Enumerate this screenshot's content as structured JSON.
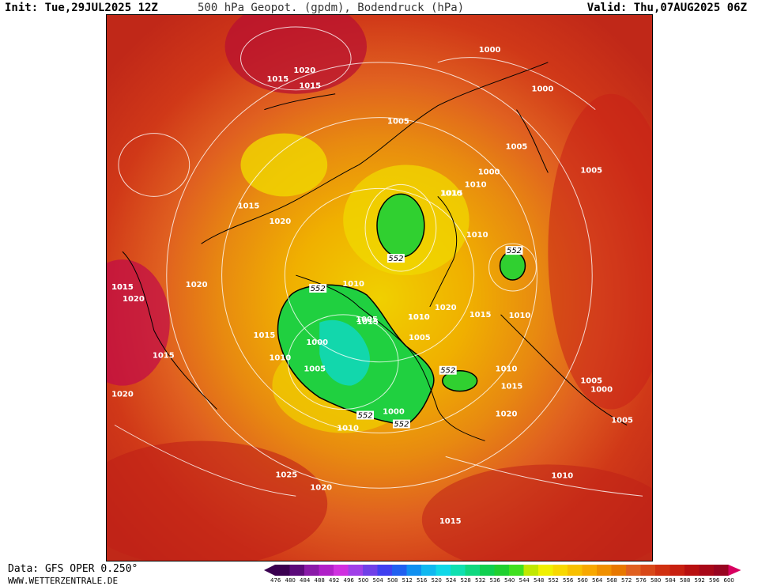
{
  "header": {
    "init": "Init: Tue,29JUL2025 12Z",
    "title": "500 hPa Geopot. (gpdm), Bodendruck (hPa)",
    "valid": "Valid: Thu,07AUG2025 06Z"
  },
  "footer": {
    "data_source": "Data: GFS OPER 0.250°",
    "site": "WWW.WETTERZENTRALE.DE"
  },
  "legend": {
    "values": [
      "476",
      "480",
      "484",
      "488",
      "492",
      "496",
      "500",
      "504",
      "508",
      "512",
      "516",
      "520",
      "524",
      "528",
      "532",
      "536",
      "540",
      "544",
      "548",
      "552",
      "556",
      "560",
      "564",
      "568",
      "572",
      "576",
      "580",
      "584",
      "588",
      "592",
      "596",
      "600"
    ],
    "colors": [
      "#3a0050",
      "#5b0a7a",
      "#8a1aa8",
      "#b020c8",
      "#d030e0",
      "#a040e8",
      "#7040e8",
      "#4040f0",
      "#2060f0",
      "#1090f0",
      "#10b8f0",
      "#10d8e8",
      "#10e0b0",
      "#10d880",
      "#10d050",
      "#20d030",
      "#40e020",
      "#c0e800",
      "#f0f000",
      "#f8d800",
      "#f8c000",
      "#f8a800",
      "#f09000",
      "#e87800",
      "#e06020",
      "#d84818",
      "#d03010",
      "#c82010",
      "#b81010",
      "#a80818",
      "#980420",
      "#d80060"
    ]
  },
  "map": {
    "isobar_labels": [
      {
        "text": "1000"
      },
      {
        "text": "1000"
      },
      {
        "text": "1005"
      },
      {
        "text": "1005"
      },
      {
        "text": "1005"
      },
      {
        "text": "1000"
      },
      {
        "text": "1010"
      },
      {
        "text": "1010"
      },
      {
        "text": "1015"
      },
      {
        "text": "1015"
      },
      {
        "text": "1020"
      },
      {
        "text": "1020"
      },
      {
        "text": "1015"
      },
      {
        "text": "1015"
      },
      {
        "text": "1020"
      },
      {
        "text": "1020"
      },
      {
        "text": "1015"
      },
      {
        "text": "1015"
      },
      {
        "text": "1010"
      },
      {
        "text": "1005"
      },
      {
        "text": "1000"
      },
      {
        "text": "1005"
      },
      {
        "text": "1010"
      },
      {
        "text": "1015"
      },
      {
        "text": "1010"
      },
      {
        "text": "1005"
      },
      {
        "text": "1020"
      },
      {
        "text": "1015"
      },
      {
        "text": "1010"
      },
      {
        "text": "1005"
      },
      {
        "text": "1000"
      },
      {
        "text": "1015"
      },
      {
        "text": "1010"
      },
      {
        "text": "1020"
      },
      {
        "text": "1010"
      },
      {
        "text": "1005"
      },
      {
        "text": "1010"
      },
      {
        "text": "1025"
      },
      {
        "text": "1020"
      },
      {
        "text": "1015"
      },
      {
        "text": "1000"
      },
      {
        "text": "1020"
      },
      {
        "text": "1015"
      },
      {
        "text": "1010"
      },
      {
        "text": "1015"
      },
      {
        "text": "1010"
      }
    ],
    "geopot_labels": [
      {
        "text": "552"
      },
      {
        "text": "552"
      },
      {
        "text": "552"
      },
      {
        "text": "552"
      },
      {
        "text": "552"
      },
      {
        "text": "552"
      }
    ]
  }
}
